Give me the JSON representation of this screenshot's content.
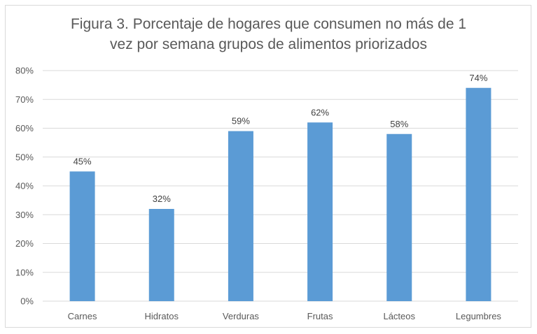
{
  "chart_data": {
    "type": "bar",
    "title": "Figura 3. Porcentaje de hogares que consumen no más de 1 vez por semana grupos de alimentos priorizados",
    "title_lines": [
      "Figura 3. Porcentaje de hogares que consumen no más de 1",
      "vez por semana grupos de alimentos priorizados"
    ],
    "categories": [
      "Carnes",
      "Hidratos",
      "Verduras",
      "Frutas",
      "Lácteos",
      "Legumbres"
    ],
    "values": [
      45,
      32,
      59,
      62,
      58,
      74
    ],
    "data_labels": [
      "45%",
      "32%",
      "59%",
      "62%",
      "58%",
      "74%"
    ],
    "ylim": [
      0,
      80
    ],
    "yticks": [
      "0%",
      "10%",
      "20%",
      "30%",
      "40%",
      "50%",
      "60%",
      "70%",
      "80%"
    ],
    "xlabel": "",
    "ylabel": "",
    "grid": true,
    "legend": "none",
    "bar_color": "#5B9BD5"
  }
}
